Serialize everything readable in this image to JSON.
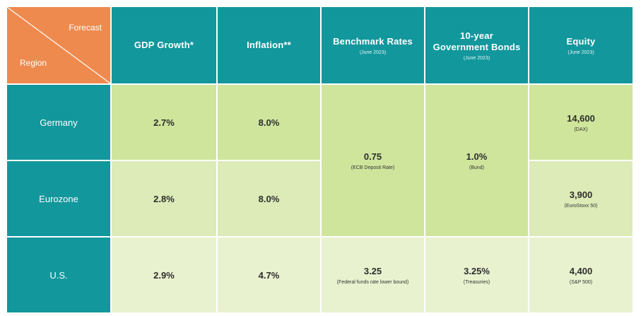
{
  "corner": {
    "forecast": "Forecast",
    "region": "Region"
  },
  "columns": [
    {
      "title": "GDP Growth*",
      "sub": ""
    },
    {
      "title": "Inflation**",
      "sub": ""
    },
    {
      "title": "Benchmark Rates",
      "sub": "(June 2023)"
    },
    {
      "title_line1": "10-year",
      "title_line2": "Government Bonds",
      "sub": "(June 2023)"
    },
    {
      "title": "Equity",
      "sub": "(June 2023)"
    }
  ],
  "rows": [
    {
      "region": "Germany",
      "gdp": "2.7%",
      "inflation": "8.0%",
      "equity": "14,600",
      "equity_sub": "(DAX)"
    },
    {
      "region": "Eurozone",
      "gdp": "2.8%",
      "inflation": "8.0%",
      "equity": "3,900",
      "equity_sub": "(EuroStoxx 50)"
    },
    {
      "region": "U.S.",
      "gdp": "2.9%",
      "inflation": "4.7%",
      "equity": "4,400",
      "equity_sub": "(S&P 500)",
      "rates": "3.25",
      "rates_sub": "(Federal funds rate lower bound)",
      "bonds": "3.25%",
      "bonds_sub": "(Treasuries)"
    }
  ],
  "euro_merged": {
    "rates": "0.75",
    "rates_sub": "(ECB Deposit Rate)",
    "bonds": "1.0%",
    "bonds_sub": "(Bund)"
  }
}
